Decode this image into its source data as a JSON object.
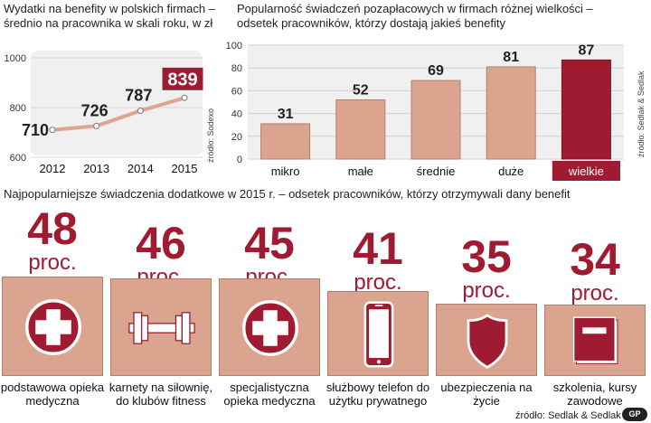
{
  "chart_data": [
    {
      "type": "line",
      "title": "Wydatki na benefity w polskich firmach – średnio na pracownika w skali roku, w zł",
      "x": [
        "2012",
        "2013",
        "2014",
        "2015"
      ],
      "values": [
        710,
        726,
        787,
        839
      ],
      "ylim": [
        600,
        1000
      ],
      "yticks": [
        "1000",
        "800",
        "600"
      ],
      "value_labels": [
        "710",
        "726",
        "787",
        "839"
      ],
      "source": "źródło: Sodexo",
      "grid": true
    },
    {
      "type": "bar",
      "title": "Popularność świadczeń pozapłacowych w firmach różnej wielkości – odsetek pracowników, którzy dostają jakieś benefity",
      "categories": [
        "mikro",
        "małe",
        "średnie",
        "duże",
        "wielkie"
      ],
      "values": [
        31,
        52,
        69,
        81,
        87
      ],
      "value_labels": [
        "31",
        "52",
        "69",
        "81",
        "87"
      ],
      "ylim": [
        0,
        100
      ],
      "yticks": [
        "100",
        "80",
        "60",
        "40",
        "20",
        "0"
      ],
      "source": "źródło: Sedlak & Sedlak",
      "grid": true
    },
    {
      "type": "table",
      "title": "Najpopularniejsze świadczenia dodatkowe w 2015 r. – odsetek pracowników, którzy otrzymywali dany benefit",
      "unit": "proc.",
      "items": [
        {
          "value": "48",
          "label": "podstawowa opieka medyczna",
          "icon": "medical-cross-icon"
        },
        {
          "value": "46",
          "label": "karnety na siłownię, do klubów fitness",
          "icon": "dumbbell-icon"
        },
        {
          "value": "45",
          "label": "specjalistyczna opieka medyczna",
          "icon": "medical-cross-icon"
        },
        {
          "value": "41",
          "label": "służbowy telefon do użytku prywatnego",
          "icon": "phone-icon"
        },
        {
          "value": "35",
          "label": "ubezpieczenia na życie",
          "icon": "shield-icon"
        },
        {
          "value": "34",
          "label": "szkolenia, kursy zawodowe",
          "icon": "book-icon"
        }
      ],
      "source": "źródło: Sedlak & Sedlak"
    }
  ],
  "colors": {
    "accent": "#9e1b32",
    "bar": "#dba48e",
    "line": "#e0a58c",
    "panel": "#f0f0f0"
  },
  "logo": "GP"
}
